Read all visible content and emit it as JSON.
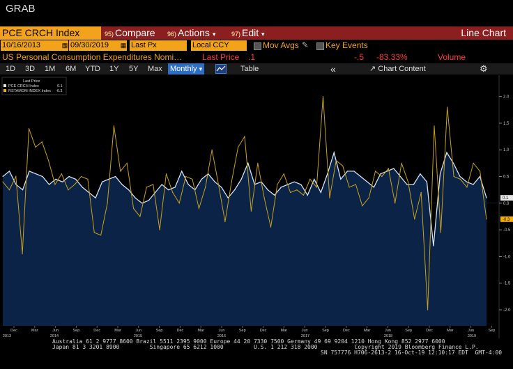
{
  "window": {
    "title": "GRAB"
  },
  "toolbar": {
    "ticker": "PCE CRCH Index",
    "compare_num": "95)",
    "compare_label": "Compare",
    "actions_num": "96)",
    "actions_label": "Actions",
    "actions_caret": "▾",
    "edit_num": "97)",
    "edit_label": "Edit",
    "edit_caret": "▾",
    "chart_type": "Line Chart"
  },
  "params": {
    "start_date": "10/16/2013",
    "end_date": "09/30/2019",
    "field": "Last Px",
    "currency": "Local CCY",
    "mov_avgs_label": "Mov Avgs",
    "key_events_label": "Key Events"
  },
  "legend_row": {
    "description": "US Personal Consumption Expenditures Nomi…",
    "last_price_label": "Last Price",
    "last_price_value": ".1",
    "change": "-.5",
    "change_pct": "-83.33%",
    "volume_label": "Volume"
  },
  "periods": [
    "1D",
    "3D",
    "1M",
    "6M",
    "YTD",
    "1Y",
    "5Y",
    "Max"
  ],
  "frequency": {
    "label": "Monthly",
    "caret": "▾"
  },
  "tools": {
    "table_label": "Table",
    "collapse_icon": "«",
    "chart_content_label": "Chart Content"
  },
  "chart_legend": {
    "header": "Last Price",
    "rows": [
      {
        "label": "PCE CRCH Index",
        "value": "0.1"
      },
      {
        "label": "RSTAMOM INDEX  Index",
        "value": "-0.3"
      }
    ]
  },
  "chart_data": {
    "type": "area",
    "ylim": [
      -2.3,
      2.4
    ],
    "y_ticks": [
      "2.0",
      "1.5",
      "1.0",
      "0.5",
      "0.0",
      "-0.5",
      "-1.0",
      "-1.5",
      "-2.0"
    ],
    "y_tick_values": [
      2.0,
      1.5,
      1.0,
      0.5,
      0.0,
      -0.5,
      -1.0,
      -1.5,
      -2.0
    ],
    "x_month_labels": [
      "Dec",
      "Mar",
      "Jun",
      "Sep",
      "Dec",
      "Mar",
      "Jun",
      "Sep",
      "Dec",
      "Mar",
      "Jun",
      "Sep",
      "Dec",
      "Mar",
      "Jun",
      "Sep",
      "Dec",
      "Mar",
      "Jun",
      "Sep",
      "Dec",
      "Mar",
      "Jun",
      "Sep"
    ],
    "x_year_labels": [
      "2013",
      "2014",
      "2015",
      "2016",
      "2017",
      "2018",
      "2019"
    ],
    "series": [
      {
        "name": "PCE CRCH Index",
        "color": "#d8e2f0",
        "fill": "#0b2346",
        "values": [
          0.5,
          0.6,
          0.35,
          0.25,
          0.6,
          0.55,
          0.5,
          0.35,
          0.45,
          0.4,
          0.5,
          0.45,
          0.3,
          0.2,
          0.1,
          0.4,
          0.45,
          0.5,
          0.35,
          0.25,
          0.1,
          0.0,
          0.05,
          0.2,
          0.35,
          0.25,
          0.3,
          0.6,
          0.35,
          0.25,
          0.45,
          0.55,
          0.4,
          0.3,
          0.1,
          0.25,
          0.45,
          0.75,
          0.35,
          0.4,
          0.25,
          0.15,
          0.3,
          0.35,
          0.4,
          0.35,
          0.15,
          0.45,
          0.2,
          0.55,
          0.95,
          0.45,
          0.6,
          0.6,
          0.5,
          0.4,
          0.3,
          0.55,
          0.6,
          0.65,
          0.5,
          0.35,
          0.35,
          0.55,
          0.4,
          -0.8,
          0.55,
          0.95,
          0.75,
          0.5,
          0.4,
          0.35,
          0.5,
          0.1
        ]
      },
      {
        "name": "RSTAMOM INDEX Index",
        "color": "#c9a21a",
        "values": [
          0.4,
          0.25,
          0.5,
          -0.95,
          1.4,
          1.05,
          1.15,
          0.8,
          0.35,
          0.55,
          0.25,
          0.35,
          0.5,
          0.45,
          -0.55,
          -0.6,
          0.0,
          1.45,
          0.6,
          0.75,
          -0.1,
          -0.25,
          0.3,
          0.35,
          -0.5,
          0.55,
          0.2,
          0.0,
          0.5,
          0.45,
          -0.1,
          0.3,
          1.0,
          0.35,
          -0.35,
          0.4,
          1.05,
          1.25,
          -0.15,
          0.75,
          0.1,
          -0.45,
          0.35,
          0.55,
          0.2,
          0.25,
          0.15,
          0.45,
          0.3,
          2.0,
          0.1,
          0.8,
          0.7,
          0.3,
          0.35,
          -0.05,
          0.1,
          0.6,
          0.5,
          0.65,
          0.0,
          0.75,
          0.4,
          -0.3,
          0.2,
          -2.0,
          1.45,
          -0.55,
          1.8,
          0.5,
          0.45,
          0.3,
          0.75,
          0.6,
          -0.3
        ]
      }
    ],
    "last_markers": [
      {
        "label": "0.1",
        "value": 0.1,
        "color": "#e6e6e6"
      },
      {
        "label": "-0.3",
        "value": -0.3,
        "color": "#f3b000"
      }
    ],
    "grid": false
  },
  "footer": {
    "line1": "Australia 61 2 9777 8600 Brazil 5511 2395 9000 Europe 44 20 7330 7500 Germany 49 69 9204 1210 Hong Kong 852 2977 6000",
    "line2": "Japan 81 3 3201 8900         Singapore 65 6212 1000         U.S. 1 212 318 2000           Copyright 2019 Bloomberg Finance L.P.",
    "line3": "SN 757776 H706-2613-2 16-Oct-19 12:10:17 EDT  GMT-4:00"
  }
}
